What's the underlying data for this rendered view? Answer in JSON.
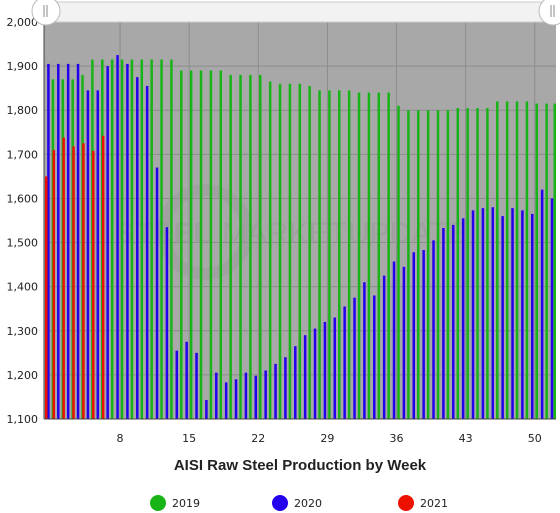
{
  "watermark": {
    "word1": "STEEL",
    "word2": "MARKET",
    "word3": "UPDATE"
  },
  "chart_data": {
    "type": "bar",
    "title": "",
    "xlabel": "AISI Raw Steel Production by Week",
    "ylabel": "",
    "xlim": [
      1,
      52
    ],
    "ylim": [
      1100,
      2000
    ],
    "yticks": [
      1100,
      1200,
      1300,
      1400,
      1500,
      1600,
      1700,
      1800,
      1900,
      2000
    ],
    "ytick_labels": [
      "1,100",
      "1,200",
      "1,300",
      "1,400",
      "1,500",
      "1,600",
      "1,700",
      "1,800",
      "1,900",
      "2,000"
    ],
    "xticks": [
      8,
      15,
      22,
      29,
      36,
      43,
      50
    ],
    "xtick_labels": [
      "8",
      "15",
      "22",
      "29",
      "36",
      "43",
      "50"
    ],
    "grid": true,
    "legend": "bottom",
    "series": [
      {
        "name": "2019",
        "color": "#17b317",
        "x": [
          1,
          2,
          3,
          4,
          5,
          6,
          7,
          8,
          9,
          10,
          11,
          12,
          13,
          14,
          15,
          16,
          17,
          18,
          19,
          20,
          21,
          22,
          23,
          24,
          25,
          26,
          27,
          28,
          29,
          30,
          31,
          32,
          33,
          34,
          35,
          36,
          37,
          38,
          39,
          40,
          41,
          42,
          43,
          44,
          45,
          46,
          47,
          48,
          49,
          50,
          51,
          52
        ],
        "values": [
          1870,
          1870,
          1870,
          1880,
          1915,
          1915,
          1915,
          1915,
          1915,
          1915,
          1915,
          1915,
          1915,
          1890,
          1890,
          1890,
          1890,
          1890,
          1880,
          1880,
          1880,
          1880,
          1865,
          1860,
          1860,
          1860,
          1855,
          1845,
          1845,
          1845,
          1845,
          1840,
          1840,
          1840,
          1840,
          1810,
          1800,
          1800,
          1800,
          1800,
          1800,
          1805,
          1805,
          1805,
          1805,
          1820,
          1820,
          1820,
          1820,
          1815,
          1815,
          1815
        ]
      },
      {
        "name": "2020",
        "color": "#2200ee",
        "x": [
          1,
          2,
          3,
          4,
          5,
          6,
          7,
          8,
          9,
          10,
          11,
          12,
          13,
          14,
          15,
          16,
          17,
          18,
          19,
          20,
          21,
          22,
          23,
          24,
          25,
          26,
          27,
          28,
          29,
          30,
          31,
          32,
          33,
          34,
          35,
          36,
          37,
          38,
          39,
          40,
          41,
          42,
          43,
          44,
          45,
          46,
          47,
          48,
          49,
          50,
          51,
          52
        ],
        "values": [
          1905,
          1905,
          1905,
          1905,
          1845,
          1845,
          1900,
          1925,
          1905,
          1875,
          1855,
          1670,
          1535,
          1255,
          1275,
          1250,
          1143,
          1205,
          1183,
          1190,
          1205,
          1198,
          1210,
          1225,
          1240,
          1265,
          1290,
          1305,
          1320,
          1330,
          1355,
          1375,
          1410,
          1380,
          1425,
          1457,
          1445,
          1478,
          1483,
          1505,
          1533,
          1540,
          1555,
          1573,
          1578,
          1580,
          1560,
          1578,
          1573,
          1565,
          1620,
          1600
        ]
      },
      {
        "name": "2021",
        "color": "#ee1100",
        "x": [
          1,
          2,
          3,
          4,
          5,
          6,
          7
        ],
        "values": [
          1650,
          1710,
          1738,
          1718,
          1725,
          1708,
          1742
        ]
      }
    ]
  }
}
